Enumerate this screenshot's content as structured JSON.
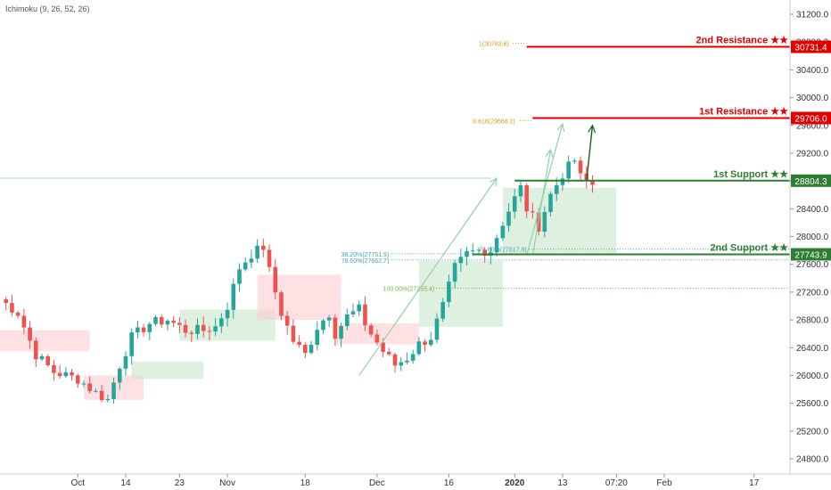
{
  "indicator": {
    "label": "Ichimoku (9, 26, 52, 26)"
  },
  "colors": {
    "up": "#26a69a",
    "down": "#ef5350",
    "cloud_up": "#c8e6c9",
    "cloud_down": "#ffcdd2",
    "resistance": "#e00000",
    "support": "#2e7d32",
    "fib_gold": "#d4a017",
    "fib_teal": "#4aa3a3",
    "fib_green": "#7cb342",
    "hline": "#a5d6c7",
    "arrow_light": "#8fd3a8",
    "arrow_dark": "#1b5e20"
  },
  "chart_data": {
    "type": "candlestick",
    "title": "",
    "ylim": [
      24600,
      31400
    ],
    "y_ticks": [
      24800,
      25200,
      25600,
      26000,
      26400,
      26800,
      27200,
      27600,
      28000,
      28400,
      28800,
      29200,
      29600,
      30000,
      30400,
      30800,
      31200
    ],
    "y_tick_labels": [
      "24800.0",
      "25200.0",
      "25600.0",
      "26000.0",
      "26400.0",
      "26800.0",
      "27200.0",
      "27600.0",
      "28000.0",
      "28400.0",
      "28800.0",
      "29200.0",
      "29600.0",
      "30000.0",
      "30400.0",
      "30800.0",
      "31200.0"
    ],
    "x_range": [
      0,
      132
    ],
    "x_ticks": [
      {
        "label": "Oct",
        "x": 13,
        "bold": false
      },
      {
        "label": "14",
        "x": 21,
        "bold": false
      },
      {
        "label": "23",
        "x": 30,
        "bold": false
      },
      {
        "label": "Nov",
        "x": 38,
        "bold": false
      },
      {
        "label": "18",
        "x": 51,
        "bold": false
      },
      {
        "label": "Dec",
        "x": 63,
        "bold": false
      },
      {
        "label": "16",
        "x": 75,
        "bold": false
      },
      {
        "label": "2020",
        "x": 86,
        "bold": true
      },
      {
        "label": "13",
        "x": 94,
        "bold": false
      },
      {
        "label": "07:20",
        "x": 103,
        "bold": false
      },
      {
        "label": "Feb",
        "x": 111,
        "bold": false
      },
      {
        "label": "17",
        "x": 126,
        "bold": false
      }
    ],
    "series": [
      {
        "type": "candlestick",
        "anchors": [
          [
            0,
            27100
          ],
          [
            3,
            26900
          ],
          [
            6,
            26300
          ],
          [
            9,
            26050
          ],
          [
            13,
            25950
          ],
          [
            16,
            25750
          ],
          [
            18,
            25650
          ],
          [
            20,
            26150
          ],
          [
            22,
            26550
          ],
          [
            25,
            26750
          ],
          [
            28,
            26800
          ],
          [
            31,
            26650
          ],
          [
            34,
            26650
          ],
          [
            36,
            26700
          ],
          [
            38,
            27000
          ],
          [
            40,
            27550
          ],
          [
            42,
            27750
          ],
          [
            44,
            27850
          ],
          [
            45,
            27500
          ],
          [
            47,
            26900
          ],
          [
            49,
            26500
          ],
          [
            51,
            26300
          ],
          [
            53,
            26700
          ],
          [
            55,
            26900
          ],
          [
            56,
            26600
          ],
          [
            58,
            26850
          ],
          [
            60,
            26950
          ],
          [
            61,
            26750
          ],
          [
            62,
            26600
          ],
          [
            64,
            26350
          ],
          [
            66,
            26150
          ],
          [
            68,
            26250
          ],
          [
            70,
            26450
          ],
          [
            72,
            26550
          ],
          [
            74,
            27000
          ],
          [
            76,
            27550
          ],
          [
            78,
            27750
          ],
          [
            80,
            27800
          ],
          [
            82,
            27800
          ],
          [
            84,
            28200
          ],
          [
            86,
            28550
          ],
          [
            87,
            28700
          ],
          [
            88,
            28400
          ],
          [
            90,
            28150
          ],
          [
            92,
            28600
          ],
          [
            94,
            28900
          ],
          [
            96,
            29100
          ],
          [
            97,
            28850
          ],
          [
            99,
            28750
          ]
        ]
      }
    ],
    "cloud": [
      {
        "x1": 0,
        "x2": 15,
        "top": 26650,
        "bottom": 26350,
        "sentiment": "bearish"
      },
      {
        "x1": 14,
        "x2": 24,
        "top": 26000,
        "bottom": 25650,
        "sentiment": "bearish"
      },
      {
        "x1": 22,
        "x2": 34,
        "top": 26200,
        "bottom": 25950,
        "sentiment": "bullish"
      },
      {
        "x1": 30,
        "x2": 46,
        "top": 26950,
        "bottom": 26500,
        "sentiment": "bullish"
      },
      {
        "x1": 43,
        "x2": 57,
        "top": 27450,
        "bottom": 26800,
        "sentiment": "bearish"
      },
      {
        "x1": 56,
        "x2": 70,
        "top": 26750,
        "bottom": 26450,
        "sentiment": "bearish"
      },
      {
        "x1": 70,
        "x2": 84,
        "top": 27650,
        "bottom": 26700,
        "sentiment": "bullish"
      },
      {
        "x1": 84,
        "x2": 103,
        "top": 28700,
        "bottom": 27750,
        "sentiment": "bullish"
      }
    ],
    "levels": [
      {
        "label": "2nd Resistance ★★",
        "tag": "30731.4",
        "y": 30731.4,
        "x_start": 88,
        "style": "resistance"
      },
      {
        "label": "1st Resistance ★★",
        "tag": "29706.0",
        "y": 29706.0,
        "x_start": 89,
        "style": "resistance"
      },
      {
        "label": "1st Support ★★",
        "tag": "28804.3",
        "y": 28804.3,
        "x_start": 86,
        "style": "support"
      },
      {
        "label": "2nd Support ★★",
        "tag": "27743.9",
        "y": 27743.9,
        "x_start": 79,
        "style": "support"
      }
    ],
    "horizontal_ray": {
      "y": 28840
    },
    "fib_labels": [
      {
        "text": "1(30783.6)",
        "y": 30783.6,
        "x_label": 80,
        "x_end": 88,
        "color": "gold"
      },
      {
        "text": "0.618(29668.2)",
        "y": 29668.2,
        "x_label": 79,
        "x_end": 89,
        "color": "gold"
      },
      {
        "text": "38.20%(27751.9)",
        "y": 27751.9,
        "x_label": 57,
        "x_end": 90,
        "color": "teal"
      },
      {
        "text": "78.60%(27662.7)",
        "y": 27662.7,
        "x_label": 57,
        "x_end": 132,
        "color": "teal"
      },
      {
        "text": "78.60%(27817.8)",
        "y": 27817.8,
        "x_label": 80,
        "x_end": 132,
        "color": "teal"
      },
      {
        "text": "100.00%(27255.4)",
        "y": 27255.4,
        "x_label": 64,
        "x_end": 132,
        "color": "green"
      }
    ],
    "arrows": [
      {
        "from": [
          60,
          26000
        ],
        "to": [
          83,
          28840
        ],
        "style": "light"
      },
      {
        "from": [
          88,
          27730
        ],
        "to": [
          94,
          29620
        ],
        "style": "light"
      },
      {
        "from": [
          89,
          27730
        ],
        "to": [
          92,
          29250
        ],
        "style": "light"
      },
      {
        "from": [
          98,
          28800
        ],
        "to": [
          99,
          29600
        ],
        "style": "dark"
      }
    ]
  }
}
